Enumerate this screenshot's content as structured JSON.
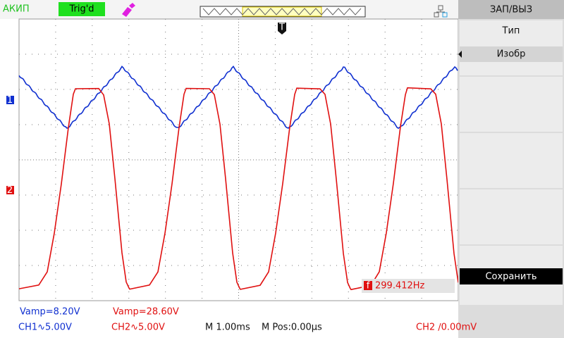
{
  "header": {
    "brand": "АКИП",
    "trigger_status": "Trig'd"
  },
  "menu": {
    "title": "ЗАП/ВЫЗ",
    "items": [
      {
        "label": "Тип"
      },
      {
        "label": "Изобр"
      },
      {
        "label": "Сохранить"
      }
    ]
  },
  "markers": {
    "ch1": "1",
    "ch2": "2",
    "trigger": "T",
    "frequency_icon": "f"
  },
  "measurements": {
    "ch1_vamp": "Vamp=8.20V",
    "ch2_vamp": "Vamp=28.60V",
    "frequency": "299.412Hz"
  },
  "status": {
    "ch1_scale": "CH1∿5.00V",
    "ch2_scale": "CH2∿5.00V",
    "timebase": "M 1.00ms",
    "position": "M Pos:0.00µs",
    "trigger_level": "CH2 ∕0.00mV"
  }
}
